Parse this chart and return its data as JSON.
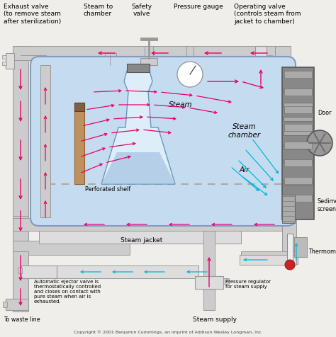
{
  "bg_color": "#f0eeea",
  "chamber_fill": "#c5dcf0",
  "pipe_color": "#d8d8d8",
  "pipe_edge": "#999999",
  "magenta": "#e8006a",
  "cyan": "#00b8d4",
  "door_fill": "#909090",
  "door_edge": "#555555",
  "labels": {
    "exhaust_valve": "Exhaust valve\n(to remove steam\nafter sterilization)",
    "steam_to_chamber": "Steam to\nchamber",
    "safety_valve": "Safety\nvalve",
    "pressure_gauge": "Pressure gauge",
    "operating_valve": "Operating valve\n(controls steam from\njacket to chamber)",
    "steam": "Steam",
    "steam_chamber": "Steam\nchamber",
    "air": "Air",
    "perforated_shelf": "Perforated shelf",
    "door": "Door",
    "sediment_screen": "Sediment\nscreen",
    "thermometer": "Thermometer",
    "steam_jacket": "Steam jacket",
    "ejector_valve": "Automatic ejector valve is\nthermostatically controlled\nand closes on contact with\npure steam when air is\nexhausted.",
    "waste_line": "To waste line",
    "pressure_regulator": "Pressure regulator\nfor steam supply",
    "steam_supply": "Steam supply",
    "copyright": "Copyright © 2001 Benjamin Cummings, an imprint of Addison Wesley Longman, Inc."
  }
}
